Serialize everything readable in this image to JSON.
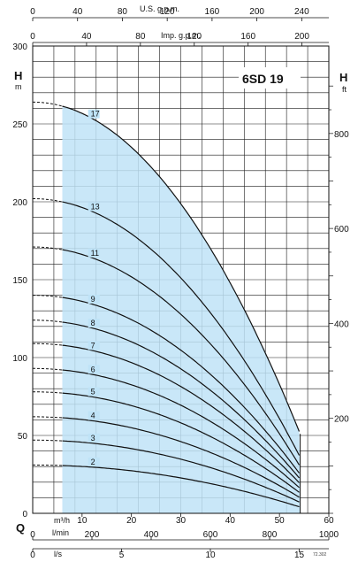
{
  "chart_data": {
    "type": "line",
    "title": "6SD 19",
    "ylabel_left": "H",
    "ylabel_left_unit": "m",
    "ylabel_right": "H",
    "ylabel_right_unit": "ft",
    "xlabel": "Q",
    "unit_m3h": "m³/h",
    "unit_lmin": "l/min",
    "unit_ls": "l/s",
    "unit_usgpm": "U.S. g.p.m.",
    "unit_impgpm": "Imp. g.p.m.",
    "drawing_code": "72.302",
    "xlim_m3h": [
      0,
      60
    ],
    "ylim_m": [
      0,
      300
    ],
    "grid": true,
    "ticks": {
      "m3h": [
        {
          "v": 10,
          "t": "10"
        },
        {
          "v": 20,
          "t": "20"
        },
        {
          "v": 30,
          "t": "30"
        },
        {
          "v": 40,
          "t": "40"
        },
        {
          "v": 50,
          "t": "50"
        },
        {
          "v": 60,
          "t": "60"
        }
      ],
      "lmin": [
        {
          "v": 0,
          "t": "0"
        },
        {
          "v": 200,
          "t": "200"
        },
        {
          "v": 400,
          "t": "400"
        },
        {
          "v": 600,
          "t": "600"
        },
        {
          "v": 800,
          "t": "800"
        },
        {
          "v": 1000,
          "t": "1000"
        }
      ],
      "ls": [
        {
          "v": 0,
          "t": "0"
        },
        {
          "v": 5,
          "t": "5"
        },
        {
          "v": 10,
          "t": "10"
        },
        {
          "v": 15,
          "t": "15"
        }
      ],
      "usgpm": [
        {
          "v": 0,
          "t": "0"
        },
        {
          "v": 40,
          "t": "40"
        },
        {
          "v": 80,
          "t": "80"
        },
        {
          "v": 120,
          "t": "120"
        },
        {
          "v": 160,
          "t": "160"
        },
        {
          "v": 200,
          "t": "200"
        },
        {
          "v": 240,
          "t": "240"
        }
      ],
      "impgpm": [
        {
          "v": 0,
          "t": "0"
        },
        {
          "v": 40,
          "t": "40"
        },
        {
          "v": 80,
          "t": "80"
        },
        {
          "v": 120,
          "t": "120"
        },
        {
          "v": 160,
          "t": "160"
        },
        {
          "v": 200,
          "t": "200"
        }
      ],
      "h_m": [
        {
          "v": 0,
          "t": "0"
        },
        {
          "v": 50,
          "t": "50"
        },
        {
          "v": 100,
          "t": "100"
        },
        {
          "v": 150,
          "t": "150"
        },
        {
          "v": 200,
          "t": "200"
        },
        {
          "v": 250,
          "t": "250"
        },
        {
          "v": 300,
          "t": "300"
        }
      ],
      "h_ft": [
        {
          "v": 200,
          "t": "200"
        },
        {
          "v": 400,
          "t": "400"
        },
        {
          "v": 600,
          "t": "600"
        },
        {
          "v": 800,
          "t": "800"
        }
      ]
    },
    "operating_range_m3h": [
      6,
      54
    ],
    "series": [
      {
        "name": "2",
        "shutoff_head": 31,
        "end_head": 4
      },
      {
        "name": "3",
        "shutoff_head": 47,
        "end_head": 7
      },
      {
        "name": "4",
        "shutoff_head": 62,
        "end_head": 10
      },
      {
        "name": "5",
        "shutoff_head": 78,
        "end_head": 13
      },
      {
        "name": "6",
        "shutoff_head": 93,
        "end_head": 16
      },
      {
        "name": "7",
        "shutoff_head": 109,
        "end_head": 19
      },
      {
        "name": "8",
        "shutoff_head": 124,
        "end_head": 22
      },
      {
        "name": "9",
        "shutoff_head": 140,
        "end_head": 25
      },
      {
        "name": "11",
        "shutoff_head": 171,
        "end_head": 30
      },
      {
        "name": "13",
        "shutoff_head": 202,
        "end_head": 36
      },
      {
        "name": "17",
        "shutoff_head": 264,
        "end_head": 51
      }
    ]
  }
}
